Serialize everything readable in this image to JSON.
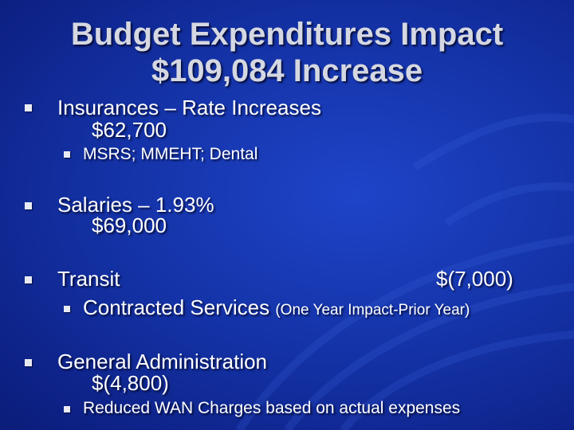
{
  "slide": {
    "title_line1": "Budget Expenditures Impact",
    "title_line2": "$109,084 Increase",
    "items": [
      {
        "label": "Insurances – Rate Increases",
        "amount": "$62,700",
        "sub": "MSRS; MMEHT; Dental"
      },
      {
        "label": "Salaries – 1.93%",
        "amount": "$69,000"
      },
      {
        "label": "Transit",
        "amount": "$(7,000)",
        "sub_main": "Contracted Services",
        "sub_note": "(One Year Impact-Prior Year)"
      },
      {
        "label": "General Administration",
        "amount": "$(4,800)",
        "sub": "Reduced WAN Charges based on actual expenses"
      }
    ]
  }
}
